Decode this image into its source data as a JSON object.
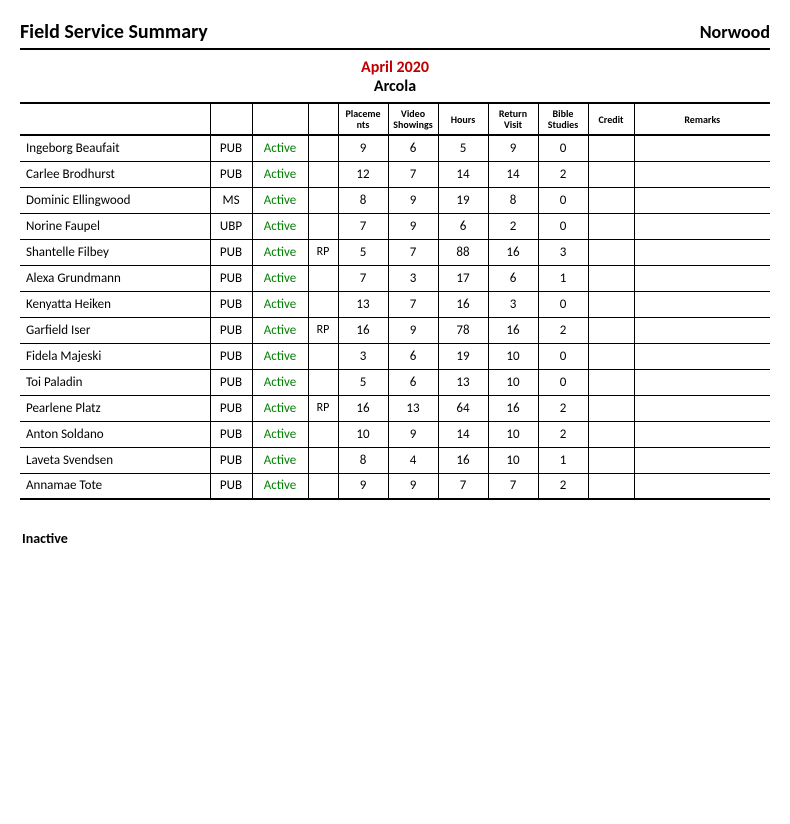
{
  "header": {
    "title": "Field Service Summary",
    "congregation": "Norwood"
  },
  "period": {
    "month": "April 2020",
    "group": "Arcola"
  },
  "columns": {
    "placements": "Placeme\nnts",
    "video": "Video\nShowings",
    "hours": "Hours",
    "return_visit": "Return\nVisit",
    "bible_studies": "Bible\nStudies",
    "credit": "Credit",
    "remarks": "Remarks"
  },
  "rows": [
    {
      "name": "Ingeborg Beaufait",
      "role": "PUB",
      "status": "Active",
      "flag": "",
      "placements": "9",
      "video": "6",
      "hours": "5",
      "rv": "9",
      "bs": "0",
      "credit": "",
      "remarks": ""
    },
    {
      "name": "Carlee Brodhurst",
      "role": "PUB",
      "status": "Active",
      "flag": "",
      "placements": "12",
      "video": "7",
      "hours": "14",
      "rv": "14",
      "bs": "2",
      "credit": "",
      "remarks": ""
    },
    {
      "name": "Dominic Ellingwood",
      "role": "MS",
      "status": "Active",
      "flag": "",
      "placements": "8",
      "video": "9",
      "hours": "19",
      "rv": "8",
      "bs": "0",
      "credit": "",
      "remarks": ""
    },
    {
      "name": "Norine Faupel",
      "role": "UBP",
      "status": "Active",
      "flag": "",
      "placements": "7",
      "video": "9",
      "hours": "6",
      "rv": "2",
      "bs": "0",
      "credit": "",
      "remarks": ""
    },
    {
      "name": "Shantelle Filbey",
      "role": "PUB",
      "status": "Active",
      "flag": "RP",
      "placements": "5",
      "video": "7",
      "hours": "88",
      "rv": "16",
      "bs": "3",
      "credit": "",
      "remarks": ""
    },
    {
      "name": "Alexa Grundmann",
      "role": "PUB",
      "status": "Active",
      "flag": "",
      "placements": "7",
      "video": "3",
      "hours": "17",
      "rv": "6",
      "bs": "1",
      "credit": "",
      "remarks": ""
    },
    {
      "name": "Kenyatta Heiken",
      "role": "PUB",
      "status": "Active",
      "flag": "",
      "placements": "13",
      "video": "7",
      "hours": "16",
      "rv": "3",
      "bs": "0",
      "credit": "",
      "remarks": ""
    },
    {
      "name": "Garfield Iser",
      "role": "PUB",
      "status": "Active",
      "flag": "RP",
      "placements": "16",
      "video": "9",
      "hours": "78",
      "rv": "16",
      "bs": "2",
      "credit": "",
      "remarks": ""
    },
    {
      "name": "Fidela Majeski",
      "role": "PUB",
      "status": "Active",
      "flag": "",
      "placements": "3",
      "video": "6",
      "hours": "19",
      "rv": "10",
      "bs": "0",
      "credit": "",
      "remarks": ""
    },
    {
      "name": "Toi Paladin",
      "role": "PUB",
      "status": "Active",
      "flag": "",
      "placements": "5",
      "video": "6",
      "hours": "13",
      "rv": "10",
      "bs": "0",
      "credit": "",
      "remarks": ""
    },
    {
      "name": "Pearlene Platz",
      "role": "PUB",
      "status": "Active",
      "flag": "RP",
      "placements": "16",
      "video": "13",
      "hours": "64",
      "rv": "16",
      "bs": "2",
      "credit": "",
      "remarks": ""
    },
    {
      "name": "Anton Soldano",
      "role": "PUB",
      "status": "Active",
      "flag": "",
      "placements": "10",
      "video": "9",
      "hours": "14",
      "rv": "10",
      "bs": "2",
      "credit": "",
      "remarks": ""
    },
    {
      "name": "Laveta Svendsen",
      "role": "PUB",
      "status": "Active",
      "flag": "",
      "placements": "8",
      "video": "4",
      "hours": "16",
      "rv": "10",
      "bs": "1",
      "credit": "",
      "remarks": ""
    },
    {
      "name": "Annamae Tote",
      "role": "PUB",
      "status": "Active",
      "flag": "",
      "placements": "9",
      "video": "9",
      "hours": "7",
      "rv": "7",
      "bs": "2",
      "credit": "",
      "remarks": ""
    }
  ],
  "inactive_label": "Inactive",
  "colors": {
    "month": "#c00000",
    "status": "#008000",
    "rule": "#000000"
  }
}
